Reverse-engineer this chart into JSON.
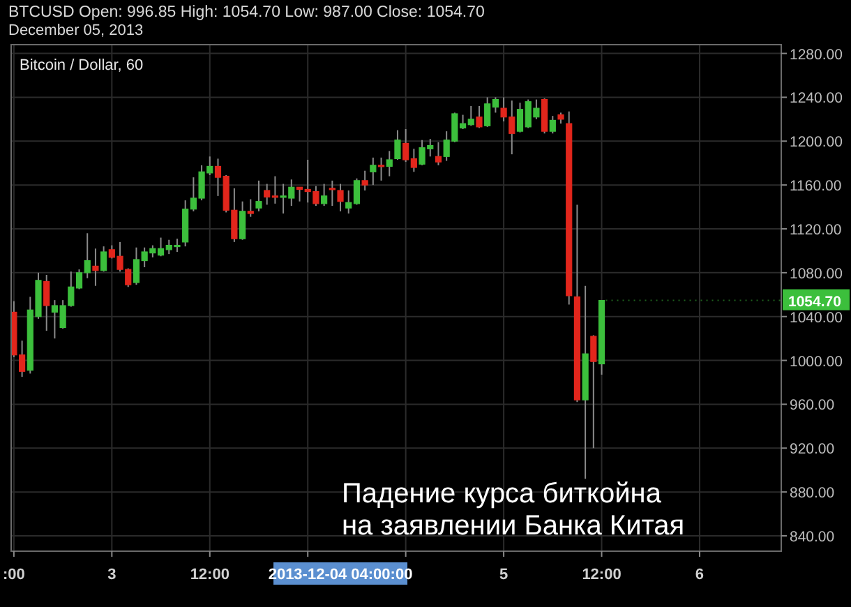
{
  "chart_data": {
    "type": "candlestick",
    "title": "BTCUSD  Open: 996.85  High: 1054.70  Low: 987.00  Close: 1054.70",
    "subtitle": "December 05, 2013",
    "annotations": [
      "Bitcoin / Dollar, 60",
      "Падение курса биткойна\nна заявлении Банка Китая",
      {
        "text": "1054.70",
        "x": "2013-12-05T12:00",
        "y": 1054.7
      }
    ],
    "xlim": [
      "2013-12-02T11:40",
      "2013-12-06T10:00"
    ],
    "xticks": [
      {
        "value": "2013-12-02T12:00",
        "label": ":00"
      },
      {
        "value": "2013-12-03T00:00",
        "label": "3"
      },
      {
        "value": "2013-12-03T12:00",
        "label": "12:00"
      },
      {
        "value": "2013-12-04T00:00",
        "label": null
      },
      {
        "value": "2013-12-04T04:00",
        "label": "2013-12-04 04:00:00"
      },
      {
        "value": "2013-12-04T12:00",
        "label": null
      },
      {
        "value": "2013-12-05T00:00",
        "label": "5"
      },
      {
        "value": "2013-12-05T12:00",
        "label": "12:00"
      },
      {
        "value": "2013-12-06T00:00",
        "label": "6"
      }
    ],
    "ylim": [
      826,
      1288
    ],
    "yticks": [
      {
        "value": 840,
        "label": "840.00"
      },
      {
        "value": 880,
        "label": "880.00"
      },
      {
        "value": 920,
        "label": "920.00"
      },
      {
        "value": 960,
        "label": "960.00"
      },
      {
        "value": 1000,
        "label": "1000.00"
      },
      {
        "value": 1040,
        "label": "1040.00"
      },
      {
        "value": 1080,
        "label": "1080.00"
      },
      {
        "value": 1120,
        "label": "1120.00"
      },
      {
        "value": 1160,
        "label": "1160.00"
      },
      {
        "value": 1200,
        "label": "1200.00"
      },
      {
        "value": 1240,
        "label": "1240.00"
      },
      {
        "value": 1280,
        "label": "1280.00"
      }
    ],
    "grid": true,
    "series": [
      {
        "color": "#3cbf3c",
        "x": [
          "2013-12-02T14:00",
          "2013-12-02T15:00",
          "2013-12-02T17:00",
          "2013-12-02T18:00",
          "2013-12-02T19:00",
          "2013-12-02T20:00",
          "2013-12-02T21:00",
          "2013-12-02T23:00",
          "2013-12-03T03:00",
          "2013-12-03T04:00",
          "2013-12-03T05:00",
          "2013-12-03T06:00",
          "2013-12-03T07:00",
          "2013-12-03T08:00",
          "2013-12-03T09:00",
          "2013-12-03T10:00",
          "2013-12-03T11:00",
          "2013-12-03T12:00",
          "2013-12-03T16:00",
          "2013-12-03T18:00",
          "2013-12-03T21:00",
          "2013-12-03T22:00",
          "2013-12-04T02:00",
          "2013-12-04T05:00",
          "2013-12-04T06:00",
          "2013-12-04T08:00",
          "2013-12-04T10:00",
          "2013-12-04T11:00",
          "2013-12-04T14:00",
          "2013-12-04T15:00",
          "2013-12-04T17:00",
          "2013-12-04T18:00",
          "2013-12-04T19:00",
          "2013-12-04T20:00",
          "2013-12-04T22:00",
          "2013-12-04T23:00",
          "2013-12-05T02:00",
          "2013-12-05T03:00",
          "2013-12-05T04:00",
          "2013-12-05T06:00",
          "2013-12-05T10:00",
          "2013-12-05T12:00"
        ],
        "ohlc": [
          [
            991,
            1058,
            988,
            1046
          ],
          [
            1040,
            1080,
            1038,
            1073
          ],
          [
            1044,
            1055,
            1020,
            1050
          ],
          [
            1030,
            1055,
            1029,
            1050
          ],
          [
            1050,
            1081,
            1049,
            1067
          ],
          [
            1066,
            1083,
            1065,
            1080
          ],
          [
            1080,
            1116,
            1075,
            1091
          ],
          [
            1082,
            1104,
            1081,
            1099
          ],
          [
            1071,
            1103,
            1069,
            1092
          ],
          [
            1091,
            1103,
            1085,
            1099
          ],
          [
            1098,
            1105,
            1094,
            1102
          ],
          [
            1096,
            1112,
            1095,
            1102
          ],
          [
            1101,
            1110,
            1097,
            1105
          ],
          [
            1104,
            1111,
            1099,
            1105
          ],
          [
            1108,
            1146,
            1104,
            1138
          ],
          [
            1138,
            1167,
            1136,
            1148
          ],
          [
            1148,
            1178,
            1146,
            1172
          ],
          [
            1171,
            1186,
            1169,
            1177
          ],
          [
            1111,
            1145,
            1110,
            1136
          ],
          [
            1139,
            1164,
            1136,
            1145
          ],
          [
            1149,
            1161,
            1134,
            1150
          ],
          [
            1148,
            1165,
            1141,
            1158
          ],
          [
            1143,
            1161,
            1141,
            1150
          ],
          [
            1139,
            1155,
            1134,
            1144
          ],
          [
            1143,
            1166,
            1142,
            1164
          ],
          [
            1172,
            1185,
            1160,
            1178
          ],
          [
            1177,
            1191,
            1168,
            1183
          ],
          [
            1184,
            1210,
            1183,
            1201
          ],
          [
            1179,
            1201,
            1178,
            1194
          ],
          [
            1193,
            1202,
            1186,
            1196
          ],
          [
            1186,
            1209,
            1182,
            1201
          ],
          [
            1200,
            1226,
            1199,
            1225
          ],
          [
            1212,
            1224,
            1211,
            1216
          ],
          [
            1215,
            1232,
            1214,
            1220
          ],
          [
            1214,
            1240,
            1213,
            1234
          ],
          [
            1231,
            1240,
            1226,
            1238
          ],
          [
            1209,
            1235,
            1208,
            1229
          ],
          [
            1213,
            1238,
            1212,
            1236
          ],
          [
            1222,
            1238,
            1220,
            1230
          ],
          [
            1209,
            1223,
            1207,
            1219
          ],
          [
            964,
            1068,
            892,
            1006
          ],
          [
            996.85,
            1054.7,
            987,
            1054.7
          ]
        ]
      },
      {
        "color": "#e2261c",
        "x": [
          "2013-12-02T12:00",
          "2013-12-02T13:00",
          "2013-12-02T16:00",
          "2013-12-02T22:00",
          "2013-12-03T00:00",
          "2013-12-03T01:00",
          "2013-12-03T02:00",
          "2013-12-03T13:00",
          "2013-12-03T14:00",
          "2013-12-03T15:00",
          "2013-12-03T17:00",
          "2013-12-03T19:00",
          "2013-12-03T20:00",
          "2013-12-03T23:00",
          "2013-12-04T00:00",
          "2013-12-04T01:00",
          "2013-12-04T03:00",
          "2013-12-04T04:00",
          "2013-12-04T07:00",
          "2013-12-04T09:00",
          "2013-12-04T12:00",
          "2013-12-04T13:00",
          "2013-12-04T16:00",
          "2013-12-04T21:00",
          "2013-12-05T00:00",
          "2013-12-05T01:00",
          "2013-12-05T05:00",
          "2013-12-05T07:00",
          "2013-12-05T08:00",
          "2013-12-05T09:00",
          "2013-12-05T11:00"
        ],
        "ohlc": [
          [
            1044,
            1054,
            1003,
            1005
          ],
          [
            1005,
            1018,
            985,
            990
          ],
          [
            1072,
            1078,
            1027,
            1050
          ],
          [
            1086,
            1102,
            1068,
            1082
          ],
          [
            1101,
            1105,
            1093,
            1094
          ],
          [
            1095,
            1108,
            1081,
            1083
          ],
          [
            1083,
            1084,
            1067,
            1069
          ],
          [
            1177,
            1184,
            1150,
            1167
          ],
          [
            1168,
            1169,
            1135,
            1137
          ],
          [
            1137,
            1157,
            1108,
            1111
          ],
          [
            1136,
            1147,
            1131,
            1134
          ],
          [
            1155,
            1161,
            1142,
            1149
          ],
          [
            1150,
            1168,
            1143,
            1149
          ],
          [
            1158,
            1158,
            1145,
            1156
          ],
          [
            1156,
            1183,
            1144,
            1154
          ],
          [
            1154,
            1159,
            1141,
            1143
          ],
          [
            1157,
            1164,
            1141,
            1156
          ],
          [
            1155,
            1161,
            1136,
            1145
          ],
          [
            1164,
            1173,
            1155,
            1160
          ],
          [
            1178,
            1185,
            1164,
            1177
          ],
          [
            1198,
            1211,
            1181,
            1183
          ],
          [
            1184,
            1193,
            1172,
            1176
          ],
          [
            1186,
            1199,
            1178,
            1181
          ],
          [
            1222,
            1232,
            1212,
            1213
          ],
          [
            1230,
            1240,
            1218,
            1222
          ],
          [
            1222,
            1237,
            1188,
            1207
          ],
          [
            1238,
            1239,
            1207,
            1209
          ],
          [
            1224,
            1226,
            1216,
            1220
          ],
          [
            1216,
            1227,
            1051,
            1059
          ],
          [
            1058,
            1142,
            962,
            964
          ],
          [
            1022,
            1023,
            920,
            999
          ]
        ]
      }
    ]
  }
}
